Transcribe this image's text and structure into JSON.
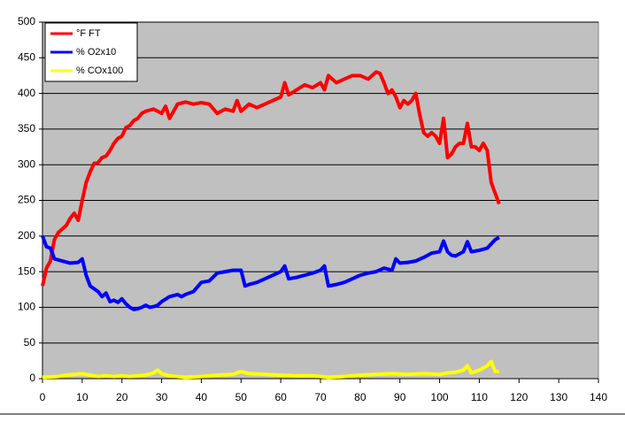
{
  "chart_data": {
    "type": "line",
    "xlim": [
      0,
      140
    ],
    "xticks": [
      0,
      10,
      20,
      30,
      40,
      50,
      60,
      70,
      80,
      90,
      100,
      110,
      120,
      130,
      140
    ],
    "ylim": [
      0,
      500
    ],
    "yticks": [
      0,
      50,
      100,
      150,
      200,
      250,
      300,
      350,
      400,
      450,
      500
    ],
    "grid": true,
    "legend": "top-left",
    "series": [
      {
        "name": "°F FT",
        "color": "#ff0000",
        "x": [
          0,
          1,
          2,
          3,
          4,
          5,
          6,
          7,
          8,
          9,
          10,
          11,
          12,
          13,
          14,
          15,
          16,
          17,
          18,
          19,
          20,
          21,
          22,
          23,
          24,
          25,
          26,
          28,
          30,
          31,
          32,
          34,
          36,
          38,
          40,
          42,
          44,
          46,
          48,
          49,
          50,
          52,
          54,
          56,
          58,
          60,
          61,
          62,
          64,
          66,
          68,
          70,
          71,
          72,
          74,
          76,
          78,
          80,
          82,
          84,
          85,
          86,
          87,
          88,
          89,
          90,
          91,
          92,
          93,
          94,
          95,
          96,
          97,
          98,
          99,
          100,
          101,
          102,
          103,
          104,
          105,
          106,
          107,
          108,
          109,
          110,
          111,
          112,
          113,
          114,
          115
        ],
        "values": [
          130,
          155,
          165,
          195,
          205,
          210,
          215,
          225,
          232,
          222,
          250,
          275,
          290,
          302,
          303,
          310,
          312,
          320,
          330,
          337,
          340,
          352,
          355,
          362,
          365,
          372,
          375,
          378,
          372,
          382,
          365,
          385,
          388,
          385,
          387,
          385,
          372,
          378,
          375,
          390,
          375,
          385,
          380,
          385,
          390,
          395,
          415,
          398,
          405,
          412,
          408,
          415,
          405,
          425,
          415,
          420,
          425,
          425,
          420,
          430,
          428,
          415,
          400,
          405,
          395,
          380,
          390,
          385,
          390,
          400,
          370,
          345,
          340,
          345,
          340,
          330,
          365,
          310,
          315,
          325,
          330,
          330,
          358,
          325,
          325,
          320,
          330,
          320,
          275,
          260,
          245
        ]
      },
      {
        "name": "% O2x10",
        "color": "#0000ff",
        "x": [
          0,
          1,
          2,
          3,
          5,
          7,
          9,
          10,
          11,
          12,
          14,
          15,
          16,
          17,
          18,
          19,
          20,
          21,
          22,
          23,
          24,
          25,
          26,
          27,
          28,
          29,
          30,
          32,
          34,
          35,
          36,
          38,
          40,
          42,
          44,
          46,
          48,
          50,
          51,
          52,
          54,
          56,
          58,
          60,
          61,
          62,
          64,
          66,
          68,
          70,
          71,
          72,
          74,
          76,
          78,
          80,
          82,
          84,
          86,
          88,
          89,
          90,
          92,
          94,
          96,
          98,
          100,
          101,
          102,
          103,
          104,
          106,
          107,
          108,
          110,
          112,
          114,
          115
        ],
        "values": [
          200,
          185,
          183,
          168,
          165,
          162,
          163,
          168,
          145,
          130,
          122,
          115,
          120,
          108,
          110,
          107,
          112,
          105,
          100,
          97,
          98,
          100,
          103,
          100,
          101,
          103,
          108,
          115,
          118,
          115,
          118,
          122,
          135,
          137,
          148,
          150,
          152,
          152,
          130,
          132,
          135,
          140,
          145,
          150,
          158,
          140,
          142,
          145,
          148,
          152,
          158,
          130,
          132,
          135,
          140,
          145,
          148,
          150,
          155,
          152,
          168,
          162,
          163,
          165,
          170,
          176,
          178,
          193,
          178,
          173,
          172,
          178,
          192,
          178,
          180,
          183,
          195,
          198
        ]
      },
      {
        "name": "% COx100",
        "color": "#ffff00",
        "x": [
          0,
          4,
          6,
          8,
          10,
          12,
          14,
          16,
          18,
          20,
          22,
          24,
          26,
          28,
          29,
          30,
          32,
          34,
          36,
          40,
          44,
          48,
          50,
          52,
          56,
          60,
          64,
          68,
          70,
          72,
          76,
          80,
          84,
          88,
          92,
          96,
          100,
          102,
          104,
          106,
          107,
          108,
          110,
          112,
          113,
          114,
          115
        ],
        "values": [
          2,
          3,
          5,
          6,
          7,
          5,
          3,
          4,
          3,
          4,
          3,
          4,
          5,
          8,
          12,
          7,
          4,
          3,
          2,
          3,
          5,
          6,
          10,
          7,
          6,
          5,
          4,
          4,
          3,
          2,
          3,
          5,
          6,
          7,
          6,
          7,
          6,
          8,
          9,
          12,
          18,
          8,
          12,
          18,
          24,
          10,
          10
        ]
      }
    ]
  }
}
